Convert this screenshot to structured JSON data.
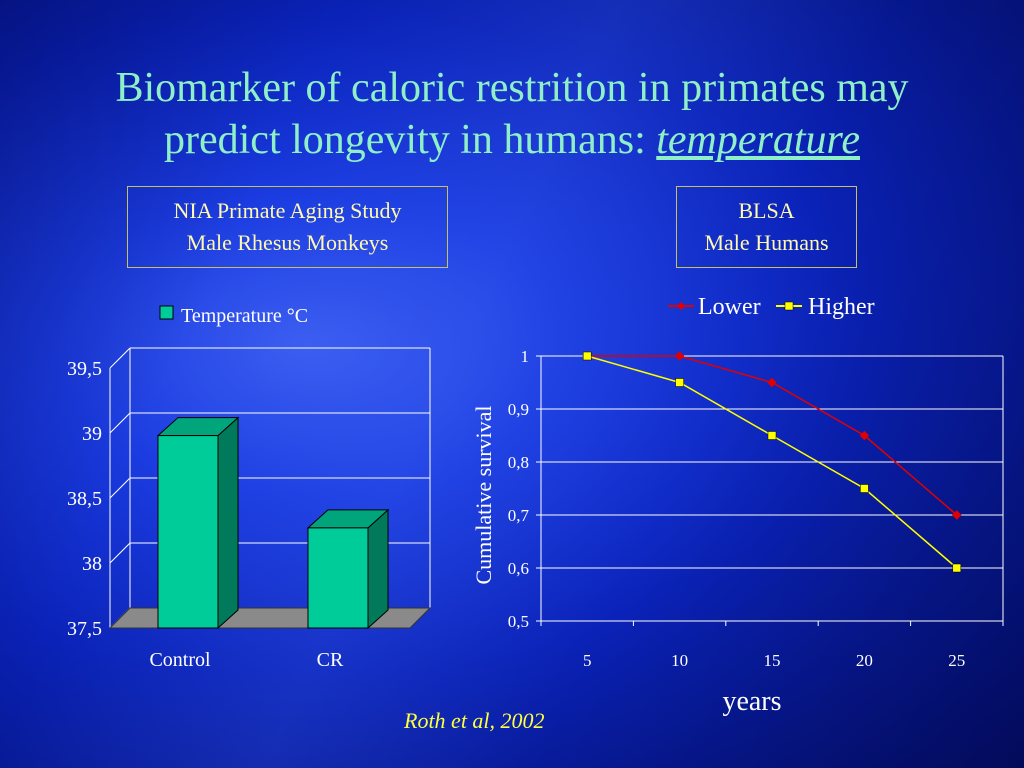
{
  "title": {
    "line1": "Biomarker of caloric restrition in primates may",
    "line2_prefix": "predict longevity in humans: ",
    "line2_emph": "temperature"
  },
  "left_box": {
    "line1": "NIA Primate Aging Study",
    "line2": "Male Rhesus Monkeys"
  },
  "right_box": {
    "line1": "BLSA",
    "line2": "Male Humans"
  },
  "citation": "Roth et al, 2002",
  "colors": {
    "title": "#8ff0c8",
    "box_text": "#fff8b0",
    "bar": "#00cc99",
    "lower": "#e00000",
    "higher": "#ffff00",
    "citation": "#ffff40"
  },
  "chart_data": [
    {
      "type": "bar",
      "style": "3d",
      "categories": [
        "Control",
        "CR"
      ],
      "series": [
        {
          "name": "Temperature °C",
          "values": [
            38.98,
            38.27
          ]
        }
      ],
      "ylim": [
        37.5,
        39.5
      ],
      "yticks": [
        "37,5",
        "38",
        "38,5",
        "39",
        "39,5"
      ],
      "ytick_values": [
        37.5,
        38,
        38.5,
        39,
        39.5
      ],
      "legend_position": "top",
      "grid": true
    },
    {
      "type": "line",
      "x": [
        5,
        10,
        15,
        20,
        25
      ],
      "xticks": [
        "5",
        "10",
        "15",
        "20",
        "25"
      ],
      "series": [
        {
          "name": "Lower",
          "values": [
            1,
            1,
            0.95,
            0.85,
            0.7
          ]
        },
        {
          "name": "Higher",
          "values": [
            1,
            0.95,
            0.85,
            0.75,
            0.6
          ]
        }
      ],
      "ylabel": "Cumulative survival",
      "xlabel": "years",
      "ylim": [
        0.5,
        1
      ],
      "yticks": [
        "0,5",
        "0,6",
        "0,7",
        "0,8",
        "0,9",
        "1"
      ],
      "ytick_values": [
        0.5,
        0.6,
        0.7,
        0.8,
        0.9,
        1
      ],
      "legend_position": "top",
      "grid": true
    }
  ]
}
